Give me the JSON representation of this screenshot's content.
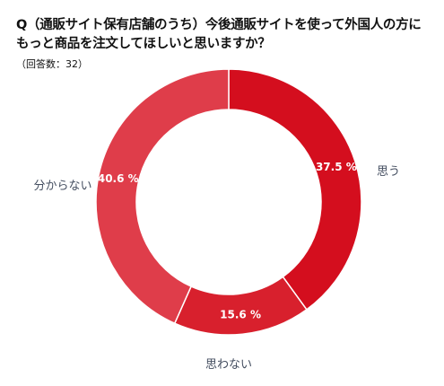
{
  "title_lines": [
    "Q（通販サイト保有店舗のうち）今後通販サイトを使って外国人の方に",
    "もっと商品を注文してほしいと思いますか？"
  ],
  "note": "（回答数：32）",
  "chart_data": {
    "type": "pie",
    "style": "donut",
    "categories": [
      "思う",
      "思わない",
      "分からない"
    ],
    "values": [
      37.5,
      15.6,
      40.6
    ],
    "value_labels": [
      "37.5 %",
      "15.6 %",
      "40.6 %"
    ],
    "colors": [
      "#d40e1e",
      "#d8202d",
      "#df3d4a"
    ],
    "separator_color": "#ffffff",
    "start": "12 o'clock, clockwise"
  }
}
